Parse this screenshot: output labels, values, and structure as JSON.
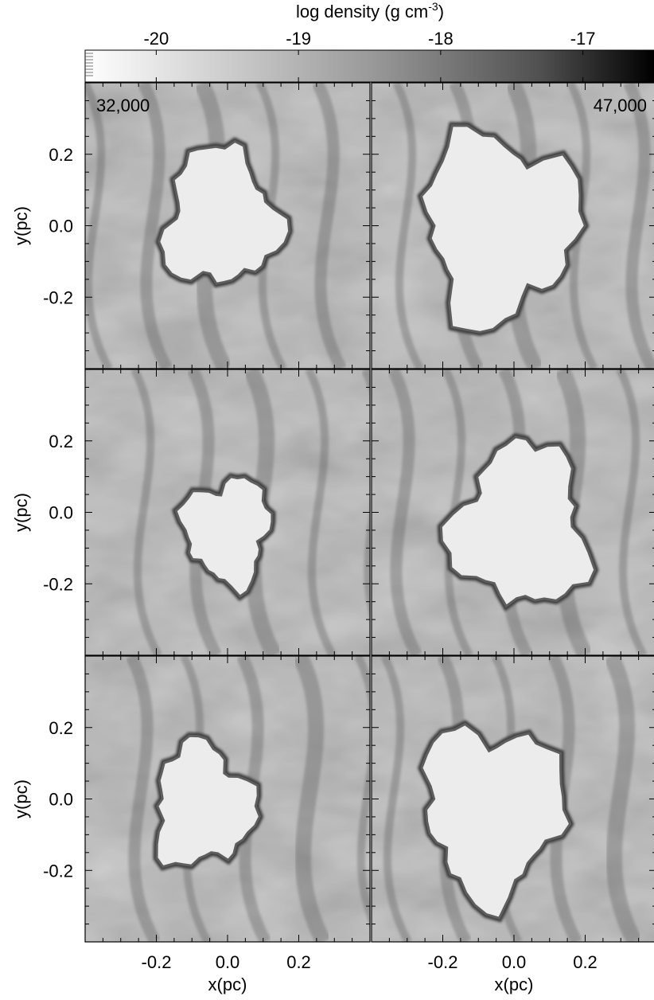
{
  "chart_data": {
    "type": "heatmap",
    "colorbar": {
      "label_main": "log density (g cm",
      "label_sup": "-3",
      "label_close": ")",
      "range": [
        -20.5,
        -16.5
      ],
      "ticks": [
        -20,
        -19,
        -18,
        -17
      ],
      "tick_labels": [
        "-20",
        "-19",
        "-18",
        "-17"
      ],
      "colormap": "grayscale, white = low density, black = high density"
    },
    "xlabel": "x(pc)",
    "ylabel": "y(pc)",
    "xlim": [
      -0.4,
      0.4
    ],
    "ylim": [
      -0.4,
      0.4
    ],
    "xticks": [
      -0.2,
      0.0,
      0.2
    ],
    "xtick_labels": [
      "-0.2",
      "0.0",
      "0.2"
    ],
    "yticks": [
      -0.2,
      0.0,
      0.2
    ],
    "ytick_labels": [
      "-0.2",
      "0.0",
      "0.2"
    ],
    "columns": [
      {
        "annotation": "32,000"
      },
      {
        "annotation": "47,000"
      }
    ],
    "rows": 3,
    "panels": [
      {
        "row": 0,
        "col": 0,
        "bubble_center": [
          -0.02,
          0.02
        ],
        "bubble_size": 0.17
      },
      {
        "row": 0,
        "col": 1,
        "bubble_center": [
          -0.04,
          0.0
        ],
        "bubble_size": 0.23
      },
      {
        "row": 1,
        "col": 0,
        "bubble_center": [
          0.0,
          -0.05
        ],
        "bubble_size": 0.13
      },
      {
        "row": 1,
        "col": 1,
        "bubble_center": [
          0.02,
          -0.04
        ],
        "bubble_size": 0.2
      },
      {
        "row": 2,
        "col": 0,
        "bubble_center": [
          -0.07,
          -0.02
        ],
        "bubble_size": 0.15
      },
      {
        "row": 2,
        "col": 1,
        "bubble_center": [
          -0.06,
          -0.03
        ],
        "bubble_size": 0.21
      }
    ]
  }
}
